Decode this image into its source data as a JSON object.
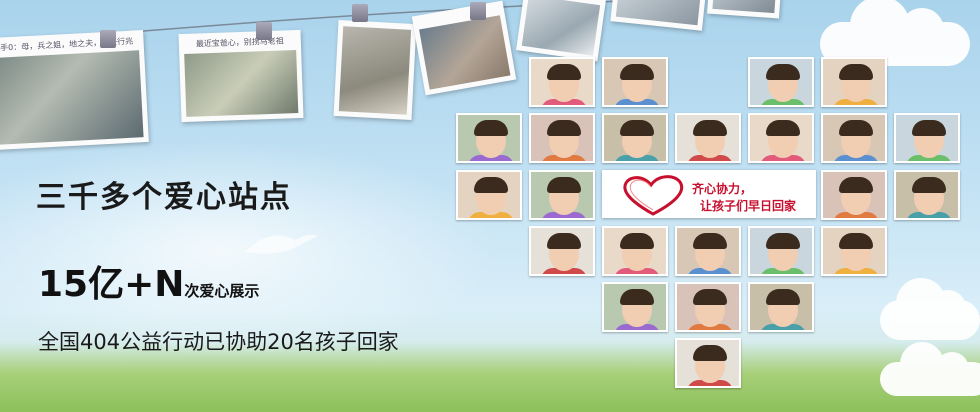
{
  "headline": "三千多个爱心站点",
  "stats": {
    "number": "15亿+N",
    "suffix": "次爱心展示"
  },
  "tagline": "全国404公益行动已协助20名孩子回家",
  "heart_badge": {
    "line1": "齐心协力，",
    "line2": "让孩子们早日回家"
  },
  "photo_captions": [
    "手0：母，兵之姐，地之夫，翻去行兆",
    "最近宝爸心，别拐马老祖"
  ],
  "colors": {
    "sky": "#a9d3ec",
    "heart_red": "#c8102e",
    "grass": "#8cc05a"
  }
}
